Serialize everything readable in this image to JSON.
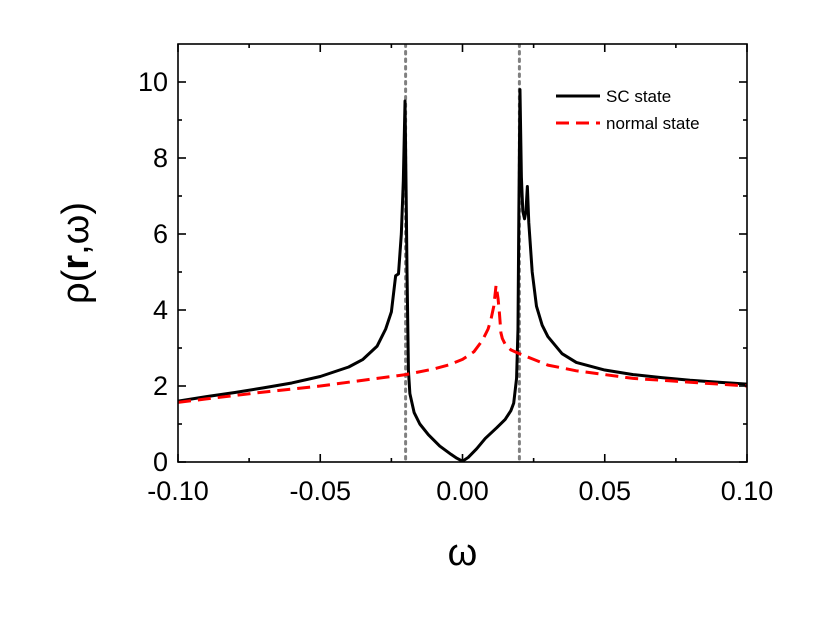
{
  "chart_data": {
    "type": "line",
    "title": "",
    "xlabel": "ω",
    "ylabel_parts": {
      "pre": "ρ(",
      "bold": "r",
      "post": ",ω)"
    },
    "xlim": [
      -0.1,
      0.1
    ],
    "ylim": [
      0,
      11
    ],
    "x_ticks": [
      -0.1,
      -0.05,
      0.0,
      0.05,
      0.1
    ],
    "x_tick_labels": [
      "-0.10",
      "-0.05",
      "0.00",
      "0.05",
      "0.10"
    ],
    "y_ticks": [
      0,
      2,
      4,
      6,
      8,
      10
    ],
    "y_tick_labels": [
      "0",
      "2",
      "4",
      "6",
      "8",
      "10"
    ],
    "grid": false,
    "legend_position": "top-right",
    "reference_lines": [
      {
        "x": -0.02,
        "style": "dotted",
        "color": "#808080"
      },
      {
        "x": 0.02,
        "style": "dotted",
        "color": "#808080"
      }
    ],
    "series": [
      {
        "name": "SC state",
        "color": "#000000",
        "style": "solid",
        "points": [
          [
            -0.1,
            1.6
          ],
          [
            -0.09,
            1.72
          ],
          [
            -0.08,
            1.83
          ],
          [
            -0.07,
            1.95
          ],
          [
            -0.06,
            2.08
          ],
          [
            -0.05,
            2.25
          ],
          [
            -0.04,
            2.5
          ],
          [
            -0.035,
            2.7
          ],
          [
            -0.03,
            3.05
          ],
          [
            -0.027,
            3.5
          ],
          [
            -0.025,
            3.95
          ],
          [
            -0.0235,
            4.9
          ],
          [
            -0.0225,
            4.95
          ],
          [
            -0.0215,
            6.0
          ],
          [
            -0.0208,
            7.4
          ],
          [
            -0.0202,
            9.5
          ],
          [
            -0.0198,
            7.0
          ],
          [
            -0.0195,
            5.0
          ],
          [
            -0.019,
            2.4
          ],
          [
            -0.0185,
            1.8
          ],
          [
            -0.017,
            1.3
          ],
          [
            -0.015,
            1.0
          ],
          [
            -0.012,
            0.72
          ],
          [
            -0.008,
            0.42
          ],
          [
            -0.004,
            0.2
          ],
          [
            -0.002,
            0.1
          ],
          [
            0.0,
            0.02
          ],
          [
            0.002,
            0.12
          ],
          [
            0.005,
            0.35
          ],
          [
            0.008,
            0.62
          ],
          [
            0.012,
            0.9
          ],
          [
            0.015,
            1.12
          ],
          [
            0.017,
            1.35
          ],
          [
            0.018,
            1.55
          ],
          [
            0.019,
            2.2
          ],
          [
            0.0195,
            3.5
          ],
          [
            0.0198,
            6.5
          ],
          [
            0.0202,
            9.8
          ],
          [
            0.0207,
            7.5
          ],
          [
            0.0212,
            6.6
          ],
          [
            0.0218,
            6.4
          ],
          [
            0.0223,
            6.6
          ],
          [
            0.0228,
            7.25
          ],
          [
            0.0233,
            6.3
          ],
          [
            0.0245,
            5.0
          ],
          [
            0.026,
            4.1
          ],
          [
            0.028,
            3.6
          ],
          [
            0.03,
            3.3
          ],
          [
            0.035,
            2.85
          ],
          [
            0.04,
            2.62
          ],
          [
            0.05,
            2.42
          ],
          [
            0.06,
            2.3
          ],
          [
            0.07,
            2.22
          ],
          [
            0.08,
            2.15
          ],
          [
            0.09,
            2.1
          ],
          [
            0.1,
            2.05
          ]
        ]
      },
      {
        "name": "normal state",
        "color": "#ff0000",
        "style": "dashed",
        "points": [
          [
            -0.1,
            1.57
          ],
          [
            -0.09,
            1.66
          ],
          [
            -0.08,
            1.75
          ],
          [
            -0.07,
            1.84
          ],
          [
            -0.06,
            1.92
          ],
          [
            -0.05,
            2.0
          ],
          [
            -0.04,
            2.1
          ],
          [
            -0.03,
            2.2
          ],
          [
            -0.02,
            2.3
          ],
          [
            -0.01,
            2.45
          ],
          [
            -0.005,
            2.55
          ],
          [
            0.0,
            2.7
          ],
          [
            0.004,
            2.9
          ],
          [
            0.007,
            3.2
          ],
          [
            0.009,
            3.5
          ],
          [
            0.01,
            3.75
          ],
          [
            0.011,
            4.1
          ],
          [
            0.0118,
            4.65
          ],
          [
            0.0125,
            4.3
          ],
          [
            0.013,
            3.9
          ],
          [
            0.0135,
            3.4
          ],
          [
            0.014,
            3.25
          ],
          [
            0.015,
            3.1
          ],
          [
            0.017,
            2.95
          ],
          [
            0.02,
            2.85
          ],
          [
            0.025,
            2.7
          ],
          [
            0.03,
            2.55
          ],
          [
            0.04,
            2.4
          ],
          [
            0.05,
            2.3
          ],
          [
            0.06,
            2.2
          ],
          [
            0.07,
            2.15
          ],
          [
            0.08,
            2.1
          ],
          [
            0.09,
            2.05
          ],
          [
            0.1,
            2.0
          ]
        ]
      }
    ]
  }
}
